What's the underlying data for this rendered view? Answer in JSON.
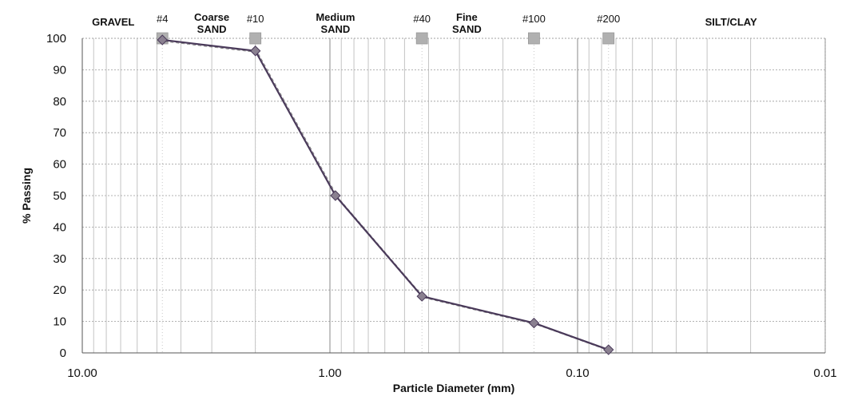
{
  "chart_data": {
    "type": "line",
    "xlabel": "Particle Diameter (mm)",
    "ylabel": "% Passing",
    "x_scale": "log",
    "x_reversed": true,
    "xlim": [
      10,
      0.01
    ],
    "ylim": [
      0,
      100
    ],
    "x_tick_values": [
      10,
      1,
      0.1,
      0.01
    ],
    "x_tick_labels": [
      "10.00",
      "1.00",
      "0.10",
      "0.01"
    ],
    "y_ticks": [
      0,
      10,
      20,
      30,
      40,
      50,
      60,
      70,
      80,
      90,
      100
    ],
    "grid": true,
    "legend": "none",
    "series": [
      {
        "x": [
          4.75,
          2.0,
          0.95,
          0.425,
          0.15,
          0.075
        ],
        "y": [
          99.5,
          96,
          50,
          18,
          9.5,
          1
        ],
        "color": "#4a3a5a",
        "marker": "diamond"
      }
    ],
    "sieves": [
      {
        "label": "#4",
        "size": 4.75
      },
      {
        "label": "#10",
        "size": 2.0
      },
      {
        "label": "#40",
        "size": 0.425
      },
      {
        "label": "#100",
        "size": 0.15
      },
      {
        "label": "#200",
        "size": 0.075
      }
    ],
    "bands": [
      {
        "lines": [
          "GRAVEL"
        ],
        "center": 7.5
      },
      {
        "lines": [
          "Coarse",
          "SAND"
        ],
        "center": 3.0
      },
      {
        "lines": [
          "Medium",
          "SAND"
        ],
        "center": 0.95
      },
      {
        "lines": [
          "Fine",
          "SAND"
        ],
        "center": 0.28
      },
      {
        "lines": [
          "SILT/CLAY"
        ],
        "center": 0.024
      }
    ]
  }
}
